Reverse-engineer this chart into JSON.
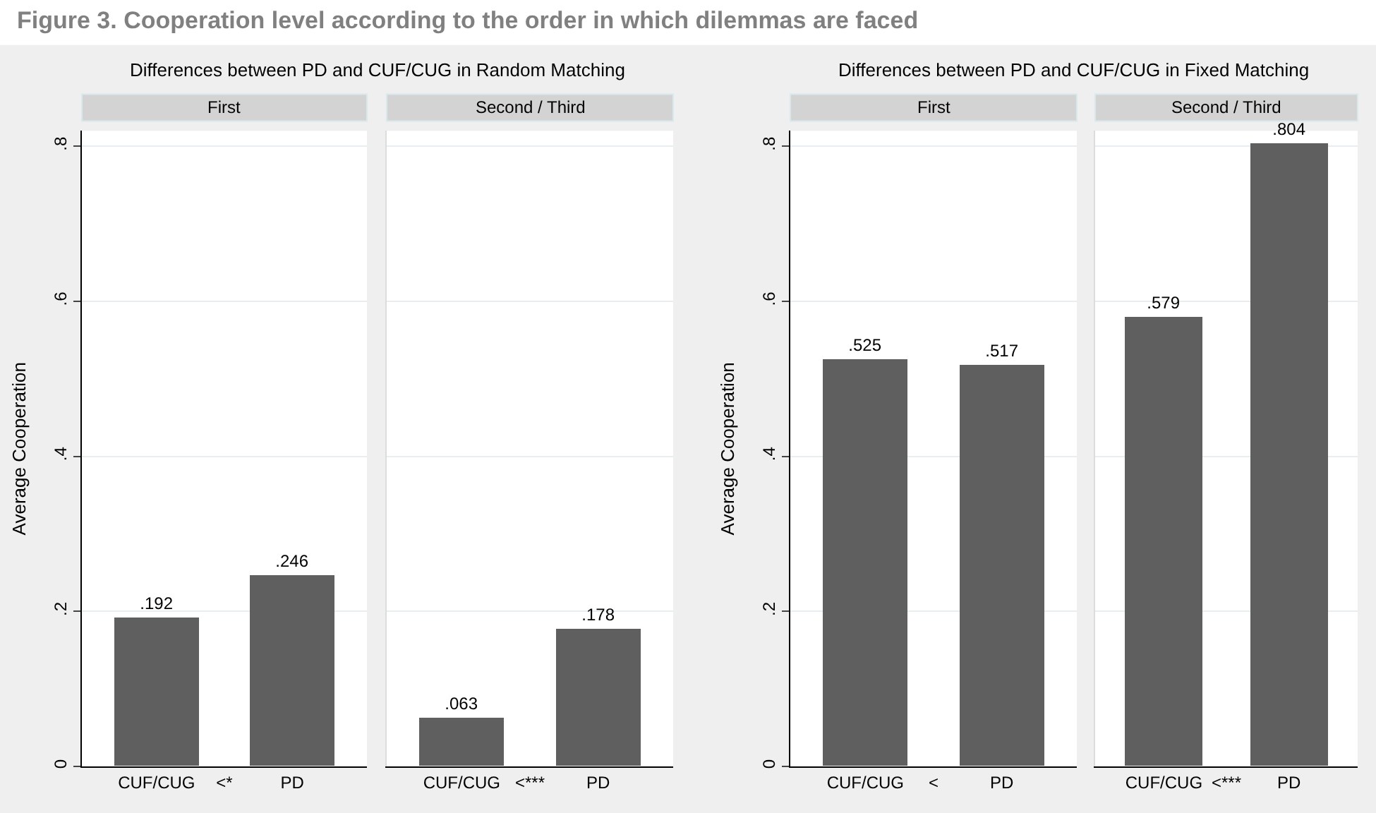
{
  "chart_data": [
    {
      "type": "bar",
      "title": "First",
      "subtitle": "Differences between PD and CUF/CUG in Random Matching",
      "annotations": [
        "Figure 3. Cooperation level according to the order in which dilemmas are faced"
      ],
      "ylabel": "Average Cooperation",
      "categories": [
        "CUF/CUG",
        "<*",
        "PD"
      ],
      "values": [
        0.192,
        null,
        0.246
      ],
      "value_labels": [
        ".192",
        null,
        ".246"
      ],
      "color": "#5f5f5f",
      "ylim": [
        0,
        0.82
      ],
      "yticks": [
        0,
        {
          "value": 0.2,
          "label": ".2"
        },
        {
          "value": 0.4,
          "label": ".4"
        },
        {
          "value": 0.6,
          "label": ".6"
        },
        {
          "value": 0.8,
          "label": ".8"
        }
      ],
      "grid": "y"
    },
    {
      "type": "bar",
      "title": "Second / Third",
      "categories": [
        "CUF/CUG",
        "<***",
        "PD"
      ],
      "values": [
        0.063,
        null,
        0.178
      ],
      "value_labels": [
        ".063",
        null,
        ".178"
      ],
      "color": "#5f5f5f",
      "ylim": [
        0,
        0.82
      ],
      "yticks": [
        {
          "value": 0,
          "label": null
        },
        {
          "value": 0.2,
          "label": null
        },
        {
          "value": 0.4,
          "label": null
        },
        {
          "value": 0.6,
          "label": null
        },
        {
          "value": 0.8,
          "label": null
        }
      ],
      "grid": "y",
      "tick_labels": "x"
    },
    {
      "type": "bar",
      "title": "First",
      "subtitle": "Differences between PD and CUF/CUG in Fixed Matching",
      "ylabel": "Average Cooperation",
      "categories": [
        "CUF/CUG",
        "<",
        "PD"
      ],
      "values": [
        0.525,
        null,
        0.517
      ],
      "value_labels": [
        ".525",
        null,
        ".517"
      ],
      "color": "#5f5f5f",
      "ylim": [
        0,
        0.82
      ],
      "yticks": [
        0,
        {
          "value": 0.2,
          "label": ".2"
        },
        {
          "value": 0.4,
          "label": ".4"
        },
        {
          "value": 0.6,
          "label": ".6"
        },
        {
          "value": 0.8,
          "label": ".8"
        }
      ],
      "grid": "y"
    },
    {
      "type": "bar",
      "title": "Second / Third",
      "categories": [
        "CUF/CUG",
        "<***",
        "PD"
      ],
      "values": [
        0.579,
        null,
        0.804
      ],
      "value_labels": [
        ".579",
        null,
        ".804"
      ],
      "color": "#5f5f5f",
      "ylim": [
        0,
        0.82
      ],
      "yticks": [
        {
          "value": 0,
          "label": null
        },
        {
          "value": 0.2,
          "label": null
        },
        {
          "value": 0.4,
          "label": null
        },
        {
          "value": 0.6,
          "label": null
        },
        {
          "value": 0.8,
          "label": null
        }
      ],
      "grid": "y",
      "tick_labels": "x"
    }
  ]
}
